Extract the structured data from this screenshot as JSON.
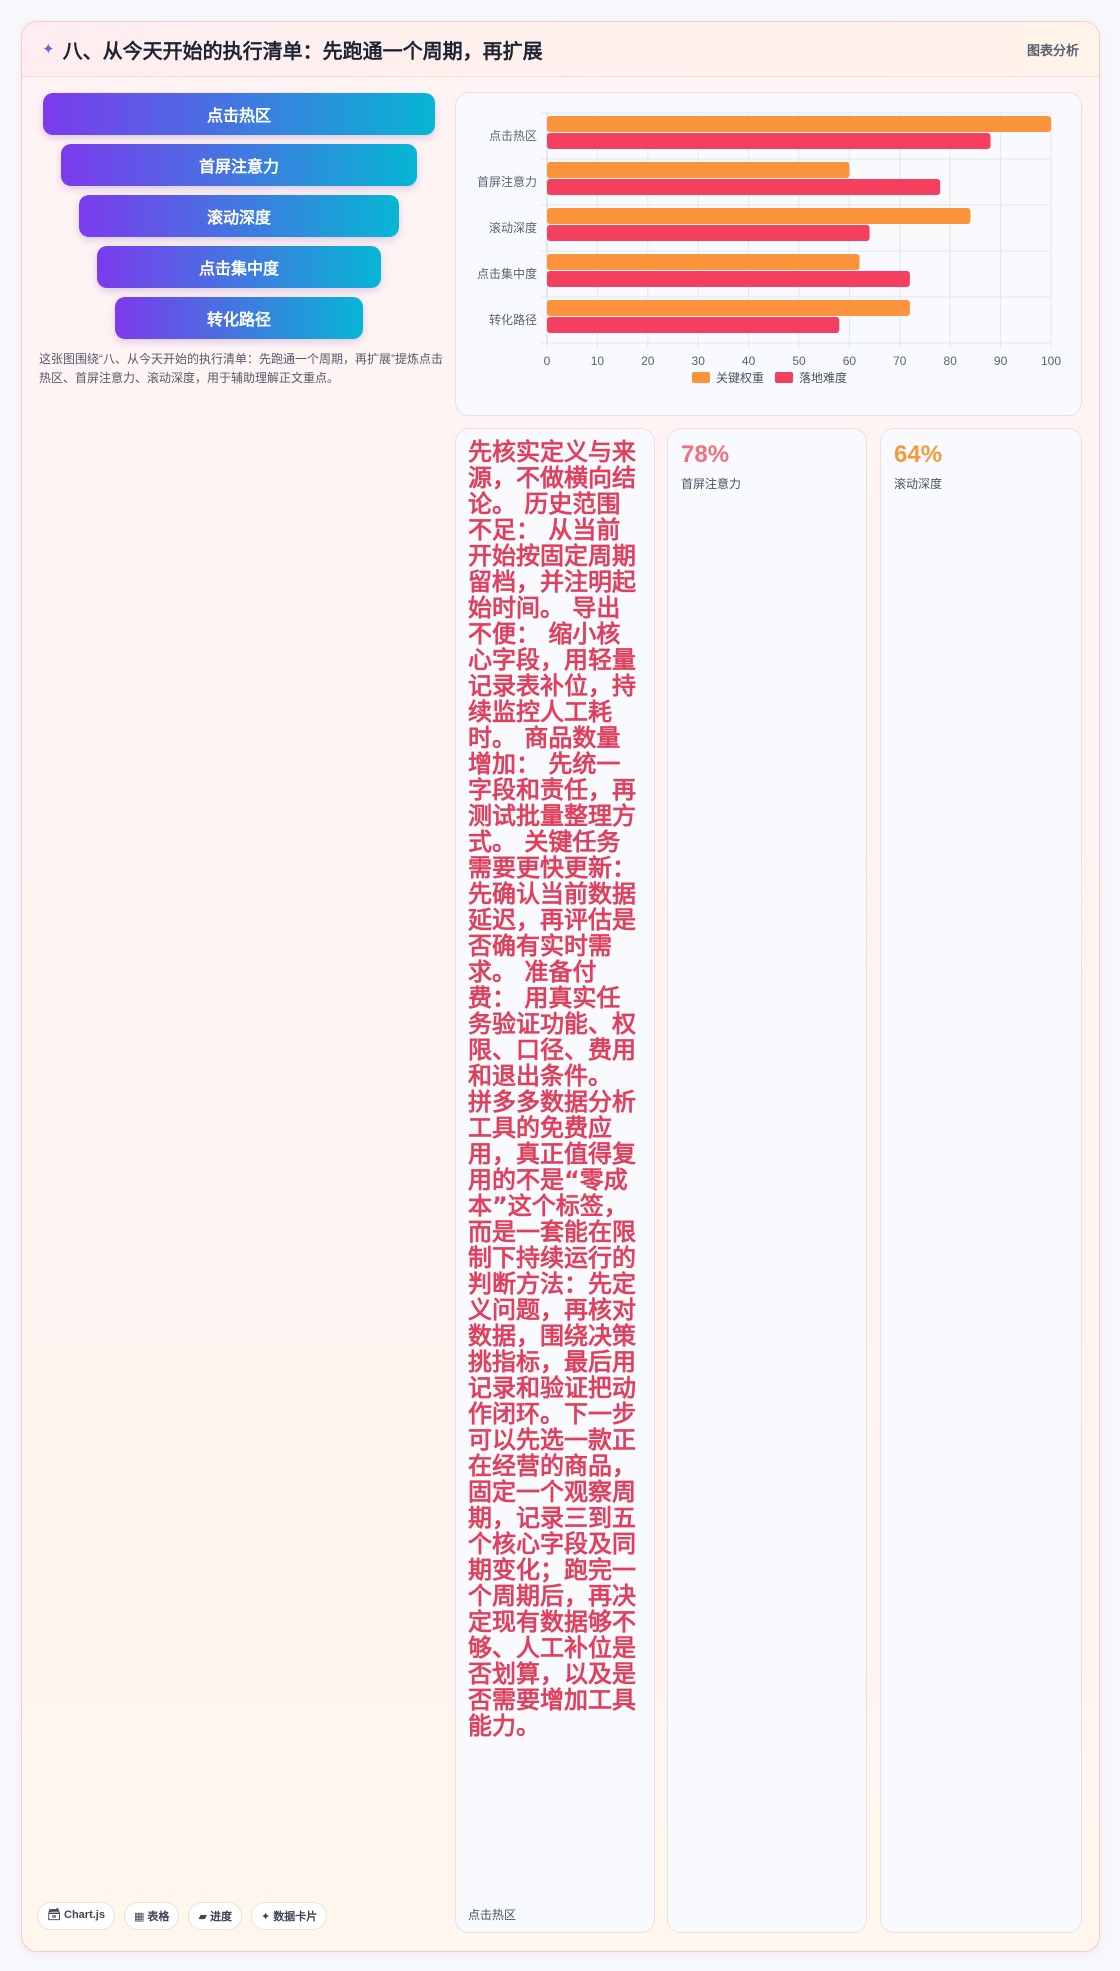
{
  "header": {
    "icon": "sparkle-icon",
    "icon_glyph": "✦",
    "title": "八、从今天开始的执行清单：先跑通一个周期，再扩展",
    "tag": "图表分析"
  },
  "funnel": {
    "steps": [
      "点击热区",
      "首屏注意力",
      "滚动深度",
      "点击集中度",
      "转化路径"
    ],
    "caption": "这张图围绕“八、从今天开始的执行清单：先跑通一个周期，再扩展”提炼点击热区、首屏注意力、滚动深度，用于辅助理解正文重点。"
  },
  "chart_data": {
    "type": "bar",
    "orientation": "horizontal",
    "categories": [
      "点击热区",
      "首屏注意力",
      "滚动深度",
      "点击集中度",
      "转化路径"
    ],
    "series": [
      {
        "name": "关键权重",
        "color": "#fb923c",
        "values": [
          100,
          60,
          84,
          62,
          72
        ]
      },
      {
        "name": "落地难度",
        "color": "#f43f5e",
        "values": [
          88,
          78,
          64,
          72,
          58
        ]
      }
    ],
    "xlim": [
      0,
      100
    ],
    "xticks": [
      0,
      10,
      20,
      30,
      40,
      50,
      60,
      70,
      80,
      90,
      100
    ],
    "grid": true,
    "legend": "bottom"
  },
  "text_card": {
    "body": "先核实定义与来源，不做横向结论。 历史范围不足： 从当前开始按固定周期留档，并注明起始时间。 导出不便： 缩小核心字段，用轻量记录表补位，持续监控人工耗时。 商品数量增加： 先统一字段和责任，再测试批量整理方式。 关键任务需要更快更新： 先确认当前数据延迟，再评估是否确有实时需求。 准备付费： 用真实任务验证功能、权限、口径、费用和退出条件。 拼多多数据分析 工具的免费应用，真正值得复用的不是“零成本”这个标签，而是一套能在限制下持续运行的判断方法：先定义问题，再核对数据，围绕决策挑指标，最后用记录和验证把动作闭环。下一步可以先选一款正在经营的商品，固定一个观察周期，记录三到五个核心字段及同期变化；跑完一个周期后，再决定现有数据够不够、人工补位是否划算，以及是否需要增加工具能力。",
    "label": "点击热区"
  },
  "stats": [
    {
      "value": "78%",
      "label": "首屏注意力",
      "color": "#f0707f"
    },
    {
      "value": "64%",
      "label": "滚动深度",
      "color": "#f59a3c"
    }
  ],
  "chips": [
    "🗃 Chart.js",
    "▦ 表格",
    "▰ 进度",
    "✦ 数据卡片"
  ]
}
